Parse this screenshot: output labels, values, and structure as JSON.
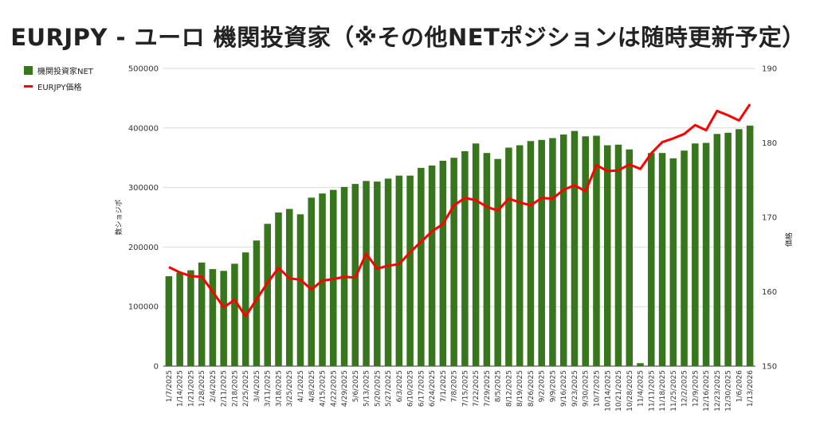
{
  "chart_data": {
    "type": "bar",
    "title": "EURJPY - ユーロ 機関投資家（※その他NETポジションは随時更新予定）",
    "ylabel": "数ショジポ",
    "y2label": "価格",
    "ylim": [
      0,
      500000
    ],
    "y2lim": [
      150,
      190
    ],
    "yticks": [
      0,
      100000,
      200000,
      300000,
      400000,
      500000
    ],
    "y2ticks": [
      150,
      160,
      170,
      180,
      190
    ],
    "grid": true,
    "legend_position": "top-left",
    "categories": [
      "1/7/2025",
      "1/14/2025",
      "1/21/2025",
      "1/28/2025",
      "2/4/2025",
      "2/11/2025",
      "2/18/2025",
      "2/25/2025",
      "3/4/2025",
      "3/11/2025",
      "3/18/2025",
      "3/25/2025",
      "4/1/2025",
      "4/8/2025",
      "4/15/2025",
      "4/22/2025",
      "4/29/2025",
      "5/6/2025",
      "5/13/2025",
      "5/20/2025",
      "5/27/2025",
      "6/3/2025",
      "6/10/2025",
      "6/17/2025",
      "6/24/2025",
      "7/1/2025",
      "7/8/2025",
      "7/15/2025",
      "7/22/2025",
      "7/29/2025",
      "8/5/2025",
      "8/12/2025",
      "8/19/2025",
      "8/26/2025",
      "9/2/2025",
      "9/9/2025",
      "9/16/2025",
      "9/23/2025",
      "9/30/2025",
      "10/7/2025",
      "10/14/2025",
      "10/21/2025",
      "10/28/2025",
      "11/4/2025",
      "11/11/2025",
      "11/18/2025",
      "11/25/2025",
      "12/2/2025",
      "12/9/2025",
      "12/16/2025",
      "12/23/2025",
      "12/30/2025",
      "1/6/2026",
      "1/13/2026"
    ],
    "series": [
      {
        "name": "機関投資家NET",
        "kind": "bar",
        "color": "#38761d",
        "axis": "left",
        "values": [
          151000,
          157000,
          161000,
          174000,
          163000,
          160000,
          172000,
          191000,
          211000,
          239000,
          258000,
          264000,
          255000,
          283000,
          290000,
          296000,
          301000,
          306000,
          311000,
          310000,
          315000,
          320000,
          320000,
          333000,
          337000,
          345000,
          350000,
          361000,
          374000,
          358000,
          348000,
          367000,
          371000,
          378000,
          380000,
          383000,
          389000,
          395000,
          386000,
          387000,
          371000,
          372000,
          364000,
          5000,
          358000,
          358000,
          349000,
          362000,
          374000,
          375000,
          390000,
          392000,
          398000,
          404000
        ]
      },
      {
        "name": "EURJPY価格",
        "kind": "line",
        "color": "#ff0000",
        "axis": "right",
        "values": [
          163.3,
          162.6,
          162.1,
          162.0,
          160.0,
          157.9,
          158.9,
          156.7,
          159.0,
          161.2,
          163.2,
          161.8,
          161.6,
          160.3,
          161.5,
          161.7,
          162.0,
          161.9,
          165.1,
          163.1,
          163.5,
          163.7,
          165.3,
          166.7,
          168.1,
          169.1,
          171.6,
          172.6,
          172.3,
          171.4,
          170.9,
          172.5,
          172.0,
          171.6,
          172.6,
          172.5,
          173.7,
          174.3,
          173.5,
          177.0,
          176.2,
          176.3,
          177.1,
          176.5,
          178.6,
          180.1,
          180.6,
          181.2,
          182.4,
          181.7,
          184.3,
          183.7,
          183.0,
          185.2
        ]
      }
    ]
  }
}
